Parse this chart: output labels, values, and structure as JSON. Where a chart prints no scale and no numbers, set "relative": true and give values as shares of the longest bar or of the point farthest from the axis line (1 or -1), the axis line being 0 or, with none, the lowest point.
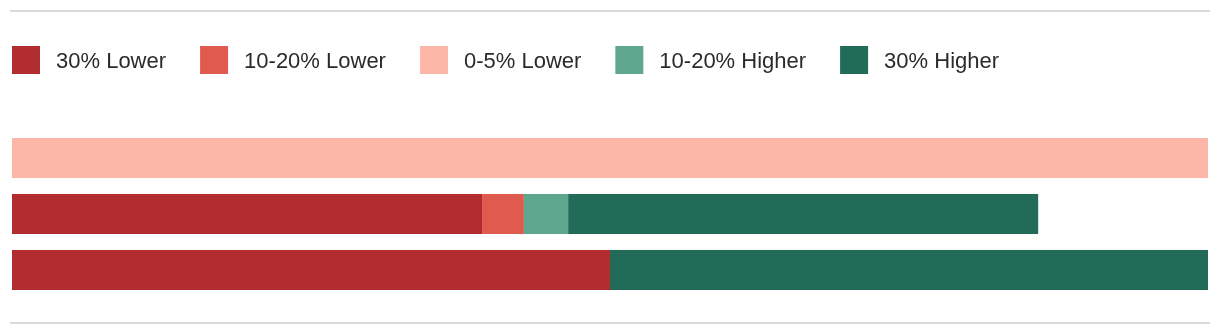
{
  "chart_data": {
    "type": "bar",
    "orientation": "horizontal",
    "stacked": true,
    "relative": true,
    "legend": "top left",
    "categories": [
      null,
      null,
      null
    ],
    "series": [
      {
        "name": "30% Lower",
        "color": "#b22d30",
        "values": [
          null,
          0.393,
          0.5
        ]
      },
      {
        "name": "10-20% Lower",
        "color": "#e05a4f",
        "values": [
          null,
          0.035,
          null
        ]
      },
      {
        "name": "0-5% Lower",
        "color": "#fdb7a8",
        "values": [
          1,
          null,
          null
        ]
      },
      {
        "name": "10-20% Higher",
        "color": "#5fa88f",
        "values": [
          null,
          0.037,
          null
        ]
      },
      {
        "name": "30% Higher",
        "color": "#226b58",
        "values": [
          null,
          0.393,
          0.5
        ]
      }
    ]
  }
}
